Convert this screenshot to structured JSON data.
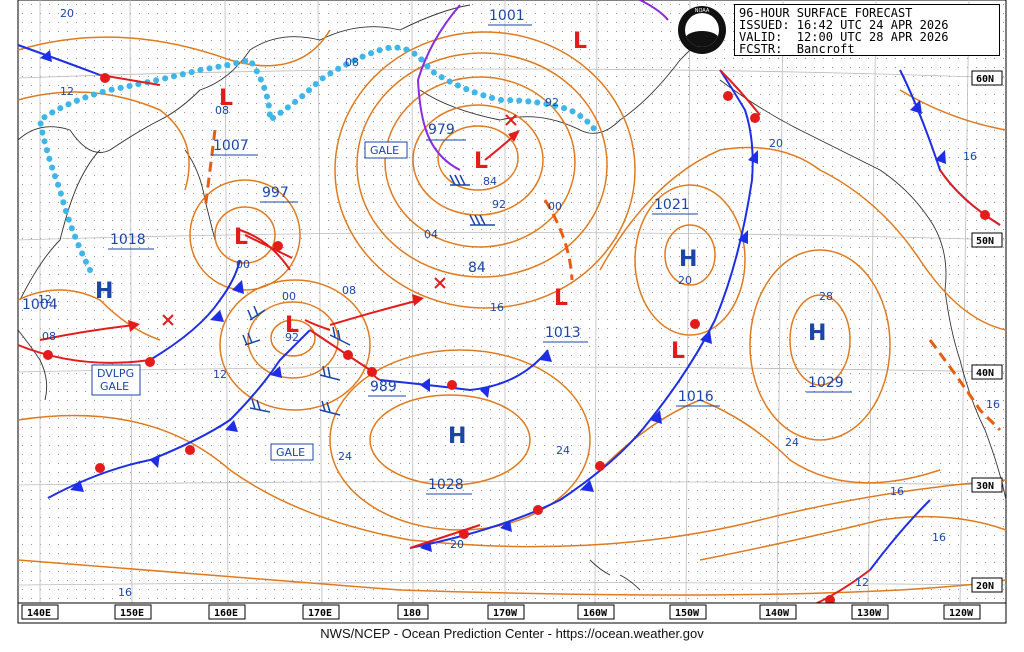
{
  "header": {
    "lines": [
      "96-HOUR SURFACE FORECAST",
      "ISSUED: 16:42 UTC 24 APR 2026",
      "VALID:  12:00 UTC 28 APR 2026",
      "FCSTR:  Bancroft"
    ],
    "logo_text": "NOAA"
  },
  "footer": "NWS/NCEP - Ocean Prediction Center - https://ocean.weather.gov",
  "longitude_labels": [
    "140E",
    "150E",
    "160E",
    "170E",
    "180",
    "170W",
    "160W",
    "150W",
    "140W",
    "130W",
    "120W"
  ],
  "latitude_labels": [
    "60N",
    "50N",
    "40N",
    "30N",
    "20N"
  ],
  "pressure_centers": [
    {
      "type": "L",
      "value": "979"
    },
    {
      "type": "L",
      "value": "1001"
    },
    {
      "type": "L",
      "value": "1007"
    },
    {
      "type": "L",
      "value": "997"
    },
    {
      "type": "L",
      "value": "989"
    },
    {
      "type": "L",
      "value": "1013"
    },
    {
      "type": "L",
      "value": "1016"
    },
    {
      "type": "H",
      "value": "1018"
    },
    {
      "type": "H",
      "value": "1028"
    },
    {
      "type": "H",
      "value": "1021"
    },
    {
      "type": "H",
      "value": "1029"
    },
    {
      "type": "H",
      "value": "1004"
    }
  ],
  "warning_labels": [
    "GALE",
    "GALE",
    "DVLPG",
    "GALE"
  ],
  "isobar_labels": [
    "20",
    "12",
    "08",
    "08",
    "00",
    "92",
    "84",
    "92",
    "00",
    "04",
    "84",
    "16",
    "08",
    "00",
    "92",
    "12",
    "24",
    "24",
    "20",
    "20",
    "28",
    "24",
    "16",
    "16",
    "16",
    "12",
    "16",
    "20",
    "16",
    "12",
    "08"
  ],
  "colors": {
    "isobar": "#e07a1f",
    "cold_front": "#1e2ee6",
    "warm_front": "#e31b1b",
    "occluded": "#8a2be2",
    "ice_edge": "#3fb6ea",
    "label": "#1a46a8",
    "grid": "#bbbbbb"
  }
}
